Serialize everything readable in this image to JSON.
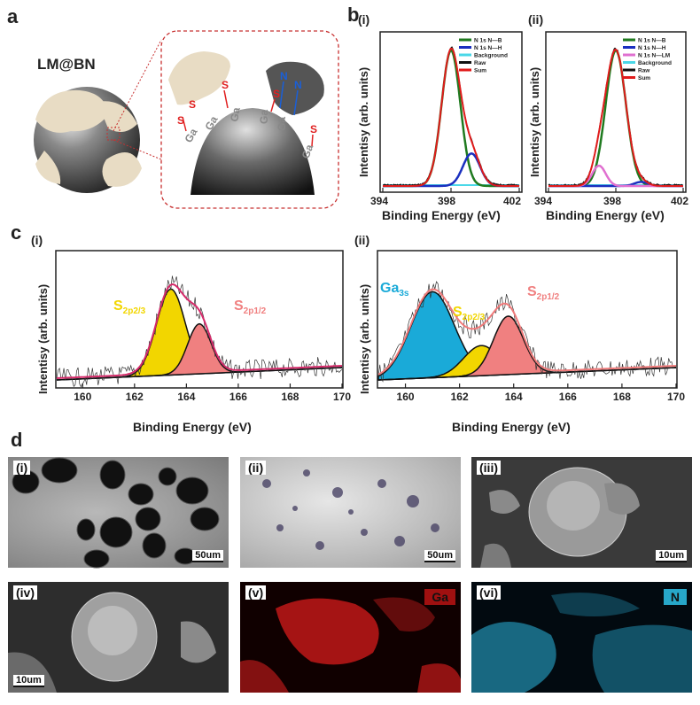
{
  "panel_labels": {
    "a": "a",
    "b": "b",
    "c": "c",
    "d": "d"
  },
  "panel_a": {
    "title": "LM@BN",
    "atoms": {
      "s": "S",
      "ga": "Ga",
      "n": "N"
    }
  },
  "panel_b": {
    "sub_i": "(i)",
    "sub_ii": "(ii)",
    "xlabel": "Binding Energy (eV)",
    "ylabel": "Intentisy (arb. units)",
    "xticks": [
      "394",
      "398",
      "402"
    ],
    "legend_i": [
      "N 1s N—B",
      "N 1s N—H",
      "Background",
      "Raw",
      "Sum"
    ],
    "legend_ii": [
      "N 1s N—B",
      "N 1s N—H",
      "N 1s N—LM",
      "Background",
      "Raw",
      "Sum"
    ]
  },
  "panel_c": {
    "sub_i": "(i)",
    "sub_ii": "(ii)",
    "xlabel": "Binding Energy (eV)",
    "ylabel": "Intentisy (arb. units)",
    "xticks": [
      "160",
      "162",
      "164",
      "166",
      "168",
      "170"
    ],
    "annot_i": {
      "s23_main": "S",
      "s23_sub": "2p2/3",
      "s12_main": "S",
      "s12_sub": "2p1/2"
    },
    "annot_ii": {
      "ga_main": "Ga",
      "ga_sub": "3s",
      "s23_main": "S",
      "s23_sub": "2p2/3",
      "s12_main": "S",
      "s12_sub": "2p1/2"
    }
  },
  "panel_d": {
    "i": {
      "label": "(i)",
      "scale": "50um"
    },
    "ii": {
      "label": "(ii)",
      "scale": "50um"
    },
    "iii": {
      "label": "(iii)",
      "scale": "10um"
    },
    "iv": {
      "label": "(iv)",
      "scale": "10um"
    },
    "v": {
      "label": "(v)",
      "element": "Ga"
    },
    "vi": {
      "label": "(vi)",
      "element": "N"
    }
  },
  "colors": {
    "nb": "#1f7a1f",
    "nh": "#1a2fbf",
    "nlm": "#e070d0",
    "bg": "#4ad8e8",
    "raw": "#111111",
    "sum": "#e01b1b",
    "s23": "#f2d600",
    "s12": "#f08080",
    "ga3s": "#1aaad8",
    "envelope_c": "#d62a6a",
    "ga_map": "#d41a1a",
    "n_map": "#27a7c9"
  },
  "chart_data": [
    {
      "type": "line",
      "title": "",
      "xlabel": "Binding Energy (eV)",
      "ylabel": "Intentisy (arb. units)",
      "xlim": [
        394,
        402
      ],
      "series": [
        {
          "name": "N 1s N—B",
          "peak_center": 398.0,
          "relative_height": 1.0
        },
        {
          "name": "N 1s N—H",
          "peak_center": 399.2,
          "relative_height": 0.24
        },
        {
          "name": "Background"
        },
        {
          "name": "Raw"
        },
        {
          "name": "Sum"
        }
      ]
    },
    {
      "type": "line",
      "title": "",
      "xlabel": "Binding Energy (eV)",
      "ylabel": "Intentisy (arb. units)",
      "xlim": [
        394,
        402
      ],
      "series": [
        {
          "name": "N 1s N—B",
          "peak_center": 398.0,
          "relative_height": 1.0
        },
        {
          "name": "N 1s N—H",
          "peak_center": 399.5,
          "relative_height": 0.03
        },
        {
          "name": "N 1s N—LM",
          "peak_center": 397.0,
          "relative_height": 0.15
        },
        {
          "name": "Background"
        },
        {
          "name": "Raw"
        },
        {
          "name": "Sum"
        }
      ]
    },
    {
      "type": "area",
      "title": "",
      "xlabel": "Binding Energy (eV)",
      "ylabel": "Intentisy (arb. units)",
      "xlim": [
        159,
        170
      ],
      "series": [
        {
          "name": "S2p2/3",
          "peak_center": 163.4,
          "relative_height": 1.0
        },
        {
          "name": "S2p1/2",
          "peak_center": 164.5,
          "relative_height": 0.58
        }
      ]
    },
    {
      "type": "area",
      "title": "",
      "xlabel": "Binding Energy (eV)",
      "ylabel": "Intentisy (arb. units)",
      "xlim": [
        159,
        170
      ],
      "series": [
        {
          "name": "Ga3s",
          "peak_center": 161.0,
          "relative_height": 1.0
        },
        {
          "name": "S2p2/3",
          "peak_center": 162.8,
          "relative_height": 0.35
        },
        {
          "name": "S2p1/2",
          "peak_center": 163.8,
          "relative_height": 0.68
        }
      ]
    }
  ]
}
